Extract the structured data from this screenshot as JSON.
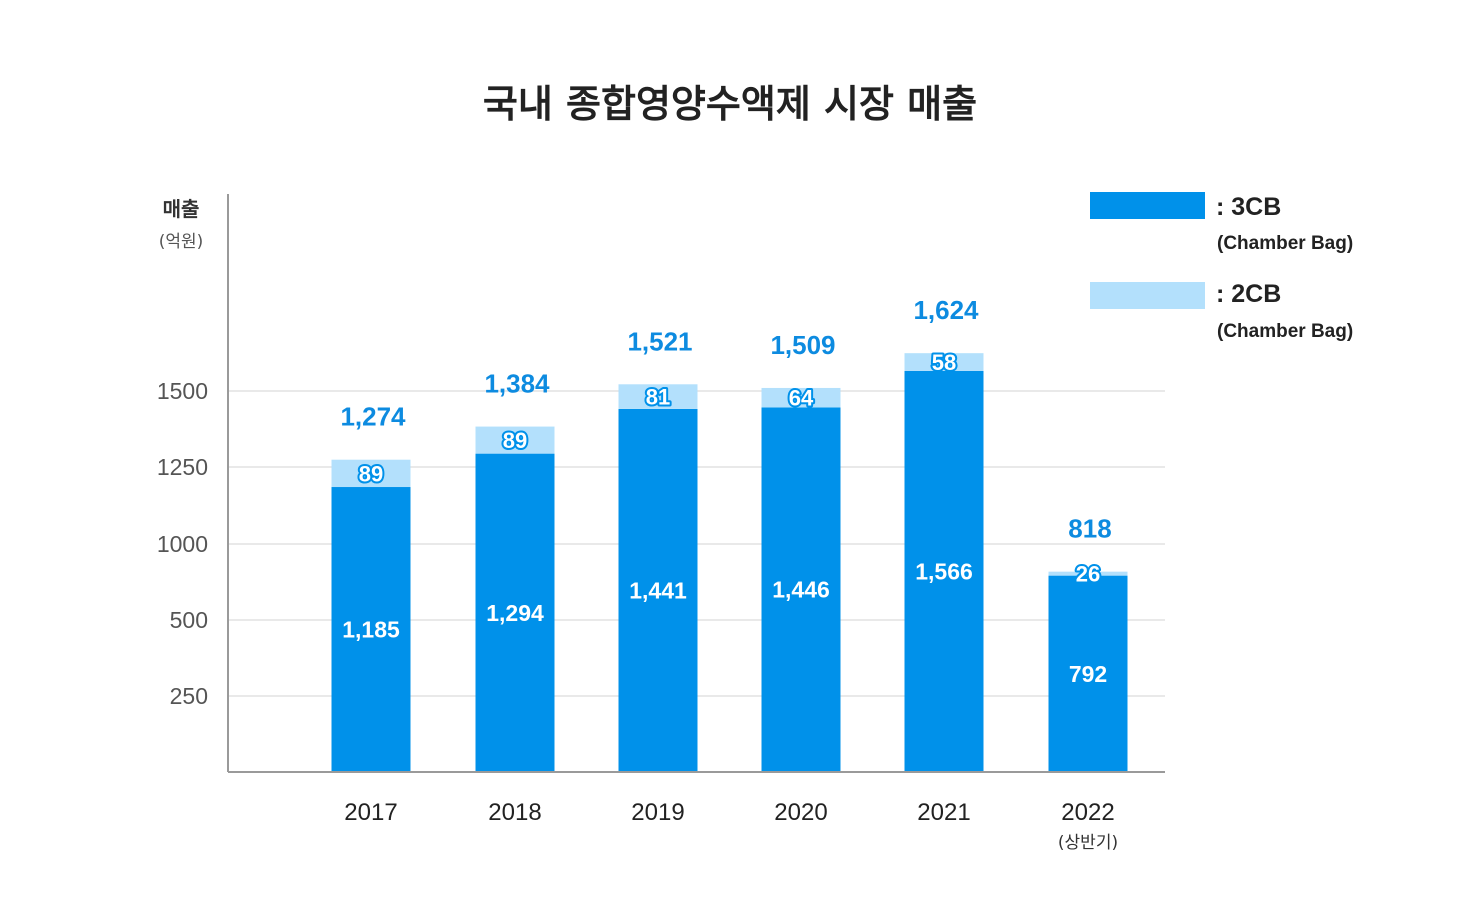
{
  "chart_data": {
    "type": "bar",
    "stacked": true,
    "title": "국내 종합영양수액제 시장 매출",
    "ylabel": "매출",
    "yunit": "(억원)",
    "categories": [
      "2017",
      "2018",
      "2019",
      "2020",
      "2021",
      "2022"
    ],
    "category_sublabels": [
      "",
      "",
      "",
      "",
      "",
      "(상반기)"
    ],
    "series": [
      {
        "name": ": 3CB",
        "subtitle": "(Chamber Bag)",
        "color": "#0091EA",
        "values": [
          1185,
          1294,
          1441,
          1446,
          1566,
          792
        ]
      },
      {
        "name": ": 2CB",
        "subtitle": "(Chamber Bag)",
        "color": "#B3E0FC",
        "values": [
          89,
          89,
          81,
          64,
          58,
          26
        ]
      }
    ],
    "totals": [
      1274,
      1384,
      1521,
      1509,
      1624,
      818
    ],
    "value_labels_3cb": [
      "1,185",
      "1,294",
      "1,441",
      "1,446",
      "1,566",
      "792"
    ],
    "value_labels_2cb": [
      "89",
      "89",
      "81",
      "64",
      "58",
      "26"
    ],
    "total_labels": [
      "1,274",
      "1,384",
      "1,521",
      "1,509",
      "1,624",
      "818"
    ],
    "yticks": [
      250,
      500,
      1000,
      1250,
      1500
    ],
    "ytick_labels": [
      "250",
      "500",
      "1000",
      "1250",
      "1500"
    ],
    "grid": true,
    "legend_position": "top-right",
    "total_label_color": "#0D8BE0"
  }
}
